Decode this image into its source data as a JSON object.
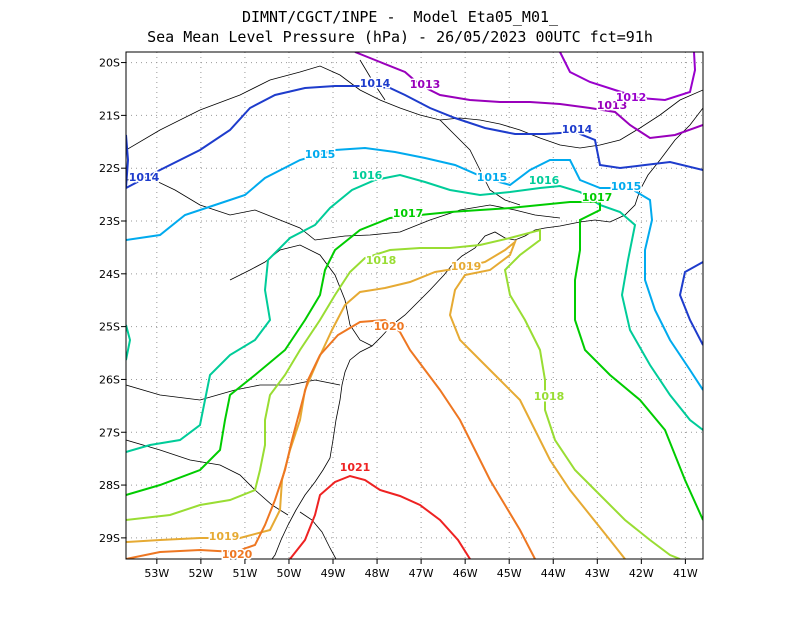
{
  "title": {
    "line1": "DIMNT/CGCT/INPE -  Model Eta05_M01_",
    "line2": "Sea Mean Level Pressure (hPa) - 26/05/2023 00UTC fct=91h"
  },
  "axes": {
    "x_ticks": [
      "53W",
      "52W",
      "51W",
      "50W",
      "49W",
      "48W",
      "47W",
      "46W",
      "45W",
      "44W",
      "43W",
      "42W",
      "41W"
    ],
    "y_ticks": [
      "20S",
      "21S",
      "22S",
      "23S",
      "24S",
      "25S",
      "26S",
      "27S",
      "28S",
      "29S"
    ],
    "x_range": [
      -53.7,
      -40.6
    ],
    "y_range": [
      -29.4,
      -19.8
    ],
    "grid": "dotted"
  },
  "colors": {
    "1012": "#9900cc",
    "1013": "#9900bb",
    "1014": "#1e3ccc",
    "1015": "#00aaee",
    "1016": "#00cc99",
    "1017": "#00cc00",
    "1018": "#99dd33",
    "1019": "#e6aa33",
    "1020": "#ee7722",
    "1021": "#ee2222"
  },
  "contour_labels": [
    {
      "text": "1013",
      "level": "1013"
    },
    {
      "text": "1013",
      "level": "1013"
    },
    {
      "text": "1012",
      "level": "1012"
    },
    {
      "text": "1014",
      "level": "1014"
    },
    {
      "text": "1014",
      "level": "1014"
    },
    {
      "text": "1014",
      "level": "1014"
    },
    {
      "text": "1015",
      "level": "1015"
    },
    {
      "text": "1015",
      "level": "1015"
    },
    {
      "text": "1015",
      "level": "1015"
    },
    {
      "text": "1016",
      "level": "1016"
    },
    {
      "text": "1016",
      "level": "1016"
    },
    {
      "text": "1017",
      "level": "1017"
    },
    {
      "text": "1017",
      "level": "1017"
    },
    {
      "text": "1018",
      "level": "1018"
    },
    {
      "text": "1018",
      "level": "1018"
    },
    {
      "text": "1019",
      "level": "1019"
    },
    {
      "text": "1019",
      "level": "1019"
    },
    {
      "text": "1020",
      "level": "1020"
    },
    {
      "text": "1020",
      "level": "1020"
    },
    {
      "text": "1021",
      "level": "1021"
    }
  ]
}
